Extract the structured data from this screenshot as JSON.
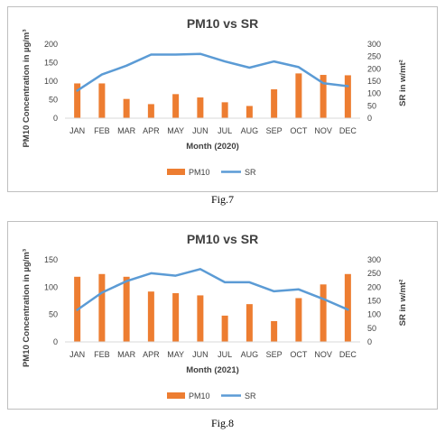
{
  "chart_data": [
    {
      "type": "bar",
      "title": "PM10 vs SR",
      "xlabel": "Month (2020)",
      "ylabel": "PM10 Concentration in µg/m³",
      "y2label": "SR in w/mt²",
      "categories": [
        "JAN",
        "FEB",
        "MAR",
        "APR",
        "MAY",
        "JUN",
        "JUL",
        "AUG",
        "SEP",
        "OCT",
        "NOV",
        "DEC"
      ],
      "ylim": [
        0,
        200
      ],
      "yticks": [
        "0",
        "50",
        "100",
        "150",
        "200"
      ],
      "y2lim": [
        0,
        300
      ],
      "y2ticks": [
        "0",
        "50",
        "100",
        "150",
        "200",
        "250",
        "300"
      ],
      "series": [
        {
          "name": "PM10",
          "type": "bar",
          "axis": "left",
          "color": "#ED7D31",
          "values": [
            94,
            94,
            52,
            38,
            65,
            56,
            43,
            33,
            78,
            121,
            117,
            116
          ]
        },
        {
          "name": "SR",
          "type": "line",
          "axis": "right",
          "color": "#5B9BD5",
          "values": [
            112,
            177,
            213,
            258,
            258,
            261,
            230,
            205,
            230,
            207,
            142,
            130
          ]
        }
      ],
      "legend": "bottom",
      "caption": "Fig.7"
    },
    {
      "type": "bar",
      "title": "PM10 vs SR",
      "xlabel": "Month (2021)",
      "ylabel": "PM10 Concentration in µg/m³",
      "y2label": "SR in w/mt²",
      "categories": [
        "JAN",
        "FEB",
        "MAR",
        "APR",
        "MAY",
        "JUN",
        "JUL",
        "AUG",
        "SEP",
        "OCT",
        "NOV",
        "DEC"
      ],
      "ylim": [
        0,
        150
      ],
      "yticks": [
        "0",
        "50",
        "100",
        "150"
      ],
      "y2lim": [
        0,
        300
      ],
      "y2ticks": [
        "0",
        "50",
        "100",
        "150",
        "200",
        "250",
        "300"
      ],
      "series": [
        {
          "name": "PM10",
          "type": "bar",
          "axis": "left",
          "color": "#ED7D31",
          "values": [
            119,
            124,
            119,
            92,
            89,
            85,
            48,
            69,
            38,
            80,
            105,
            124
          ]
        },
        {
          "name": "SR",
          "type": "line",
          "axis": "right",
          "color": "#5B9BD5",
          "values": [
            117,
            180,
            222,
            251,
            242,
            266,
            218,
            218,
            185,
            192,
            157,
            118
          ]
        }
      ],
      "legend": "bottom",
      "caption": "Fig.8"
    }
  ]
}
